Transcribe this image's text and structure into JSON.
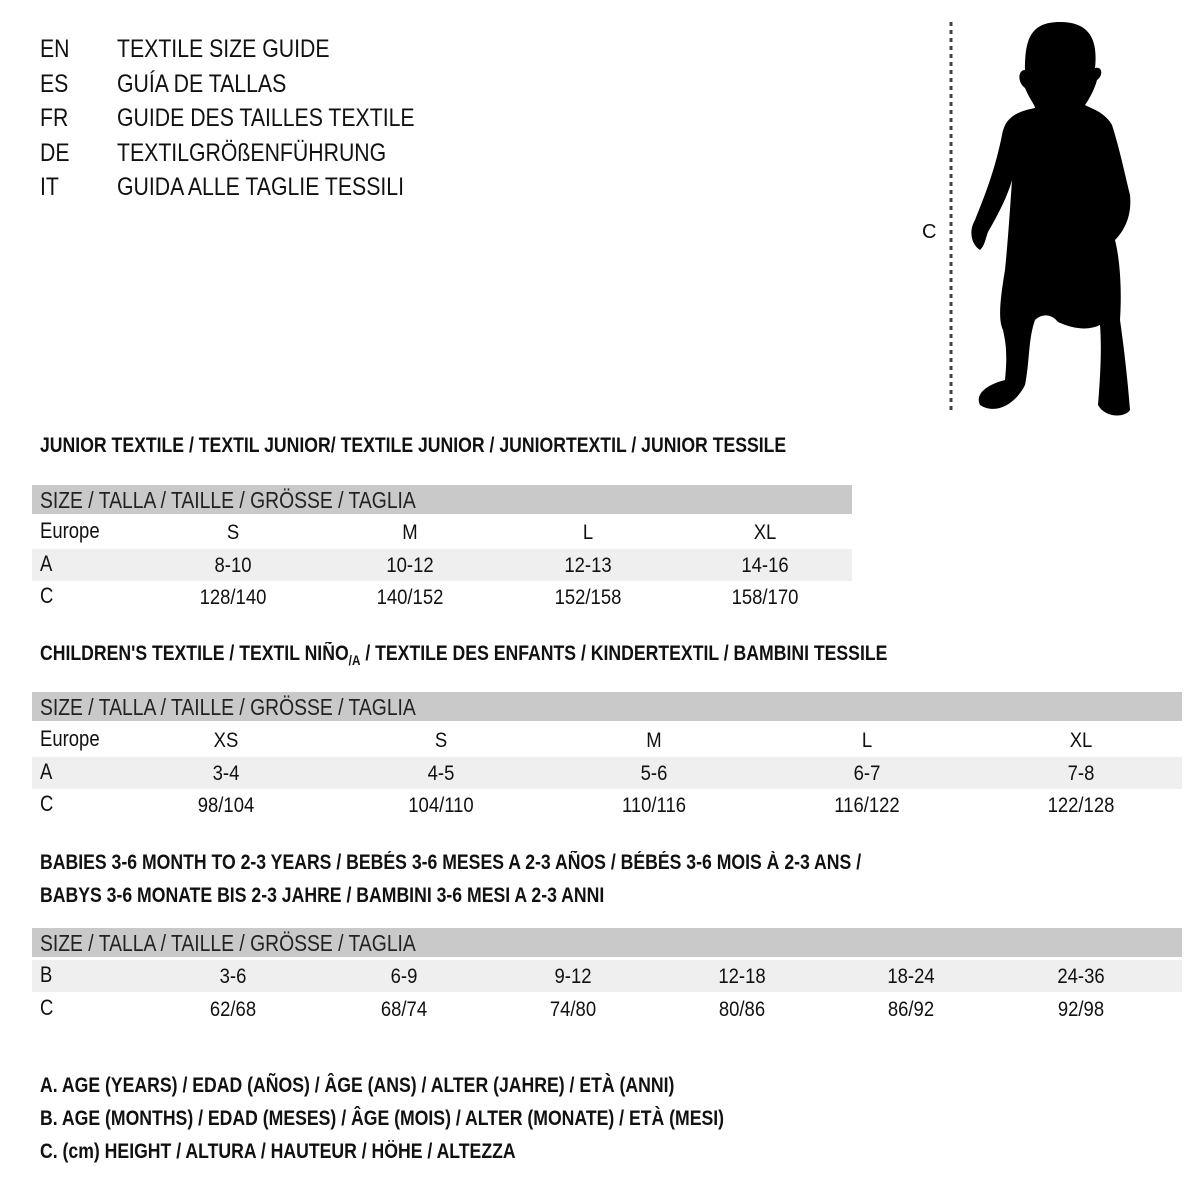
{
  "languages": [
    {
      "code": "EN",
      "title": "TEXTILE SIZE GUIDE"
    },
    {
      "code": "ES",
      "title": "GUÍA DE TALLAS"
    },
    {
      "code": "FR",
      "title": "GUIDE DES TAILLES TEXTILE"
    },
    {
      "code": "DE",
      "title": "TEXTILGRÖßENFÜHRUNG"
    },
    {
      "code": "IT",
      "title": "GUIDA ALLE TAGLIE TESSILI"
    }
  ],
  "figure": {
    "measure_label": "C"
  },
  "size_header": "SIZE / TALLA / TAILLE / GRÖSSE / TAGLIA",
  "junior": {
    "title": "JUNIOR TEXTILE / TEXTIL JUNIOR/ TEXTILE JUNIOR / JUNIORTEXTIL / JUNIOR TESSILE",
    "rows": [
      {
        "label": "Europe",
        "values": [
          "S",
          "M",
          "L",
          "XL"
        ]
      },
      {
        "label": "A",
        "values": [
          "8-10",
          "10-12",
          "12-13",
          "14-16"
        ]
      },
      {
        "label": "C",
        "values": [
          "128/140",
          "140/152",
          "152/158",
          "158/170"
        ]
      }
    ]
  },
  "children": {
    "title_a": "CHILDREN'S TEXTILE / TEXTIL NIÑO",
    "title_sub": "/A",
    "title_b": " / TEXTILE DES ENFANTS / KINDERTEXTIL / BAMBINI TESSILE",
    "rows": [
      {
        "label": "Europe",
        "values": [
          "XS",
          "S",
          "M",
          "L",
          "XL"
        ]
      },
      {
        "label": "A",
        "values": [
          "3-4",
          "4-5",
          "5-6",
          "6-7",
          "7-8"
        ]
      },
      {
        "label": "C",
        "values": [
          "98/104",
          "104/110",
          "110/116",
          "116/122",
          "122/128"
        ]
      }
    ]
  },
  "babies": {
    "title_line1": "BABIES 3-6 MONTH TO 2-3 YEARS / BEBÉS 3-6 MESES A 2-3 AÑOS / BÉBÉS 3-6 MOIS À 2-3 ANS /",
    "title_line2": "BABYS 3-6 MONATE BIS 2-3 JAHRE / BAMBINI 3-6 MESI A 2-3 ANNI",
    "rows": [
      {
        "label": "B",
        "values": [
          "3-6",
          "6-9",
          "9-12",
          "12-18",
          "18-24",
          "24-36"
        ]
      },
      {
        "label": "C",
        "values": [
          "62/68",
          "68/74",
          "74/80",
          "80/86",
          "86/92",
          "92/98"
        ]
      }
    ]
  },
  "legend": [
    "A. AGE (YEARS) / EDAD (AÑOS) / ÂGE (ANS) / ALTER (JAHRE) / ETÀ (ANNI)",
    "B. AGE (MONTHS) / EDAD (MESES) / ÂGE (MOIS) / ALTER (MONATE) / ETÀ (MESI)",
    "C. (cm) HEIGHT / ALTURA / HAUTEUR / HÖHE / ALTEZZA"
  ],
  "colors": {
    "header_bar": "#c9c9c9",
    "alt_row": "#efefef",
    "silhouette": "#000000"
  }
}
